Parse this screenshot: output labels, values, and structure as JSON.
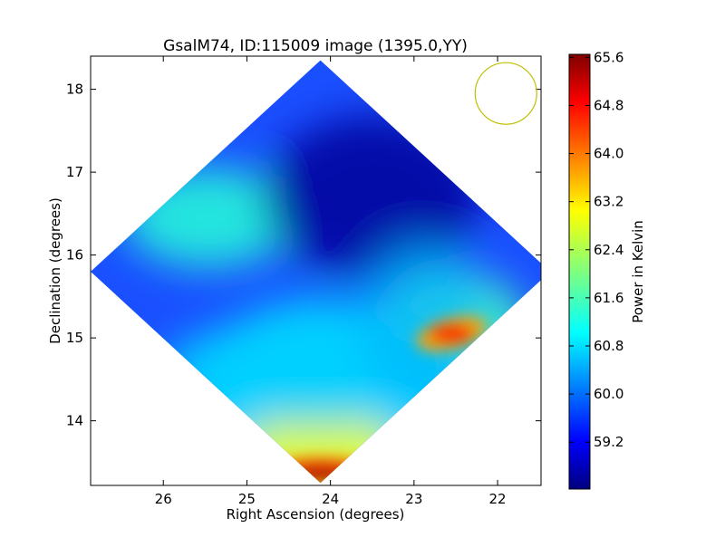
{
  "chart_data": {
    "type": "heatmap",
    "title": "GsalM74, ID:115009 image (1395.0,YY)",
    "xlabel": "Right Ascension (degrees)",
    "ylabel": "Declination (degrees)",
    "xlim": [
      26.87,
      21.48
    ],
    "ylim": [
      13.22,
      18.4
    ],
    "x_ticks": [
      26,
      25,
      24,
      23,
      22
    ],
    "y_ticks": [
      14,
      15,
      16,
      17,
      18
    ],
    "x_tick_labels": [
      "26",
      "25",
      "24",
      "23",
      "22"
    ],
    "y_tick_labels": [
      "14",
      "15",
      "16",
      "17",
      "18"
    ],
    "map_region": {
      "shape": "diamond",
      "center": [
        24.12,
        15.8
      ],
      "half_width_ra": 2.75,
      "half_height_dec": 2.55
    },
    "colorbar": {
      "label": "Power in Kelvin",
      "range": [
        58.42,
        65.65
      ],
      "ticks": [
        59.2,
        60.0,
        60.8,
        61.6,
        62.4,
        63.2,
        64.0,
        64.8,
        65.6
      ],
      "tick_labels": [
        "59.2",
        "60.0",
        "60.8",
        "61.6",
        "62.4",
        "63.2",
        "64.0",
        "64.8",
        "65.6"
      ],
      "colormap": "jet"
    },
    "features": [
      {
        "ra": 24.12,
        "dec": 13.4,
        "value": 65.4
      },
      {
        "ra": 22.55,
        "dec": 15.05,
        "value": 64.8
      },
      {
        "ra": 25.45,
        "dec": 16.45,
        "value": 61.8
      },
      {
        "ra": 23.5,
        "dec": 16.7,
        "value": 59.0
      }
    ],
    "beam_circle": {
      "ra": 21.9,
      "dec": 17.95,
      "color": "#bfbf00"
    }
  }
}
